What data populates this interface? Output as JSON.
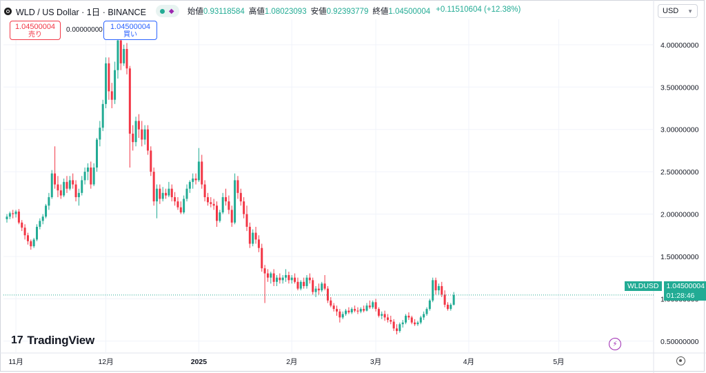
{
  "header": {
    "title": "WLD / US Dollar · 1日 · BINANCE",
    "open_label": "始値",
    "open": "0.93118584",
    "high_label": "高値",
    "high": "1.08023093",
    "low_label": "安値",
    "low": "0.92393779",
    "close_label": "終値",
    "close": "1.04500004",
    "change": "+0.11510604 (+12.38%)"
  },
  "currency": "USD",
  "trade": {
    "sell_price": "1.04500004",
    "sell_label": "売り",
    "spread": "0.00000000",
    "buy_price": "1.04500004",
    "buy_label": "買い"
  },
  "price_label": {
    "symbol": "WLDUSD",
    "price": "1.04500004",
    "countdown": "01:28:46"
  },
  "logo": "TradingView",
  "colors": {
    "up": "#22ab94",
    "down": "#f23645",
    "grid": "#f0f3fa",
    "accent": "#9c27b0"
  },
  "chart_data": {
    "type": "candlestick",
    "timeframe": "1日",
    "yticks": [
      "0.50000000",
      "1.00000000",
      "1.50000000",
      "2.00000000",
      "2.50000000",
      "3.00000000",
      "3.50000000",
      "4.00000000"
    ],
    "ylim": [
      0.36,
      4.3
    ],
    "xticks": [
      {
        "label": "11月",
        "index": 3
      },
      {
        "label": "12月",
        "index": 33
      },
      {
        "label": "2025",
        "index": 64
      },
      {
        "label": "2月",
        "index": 95
      },
      {
        "label": "3月",
        "index": 123
      },
      {
        "label": "4月",
        "index": 154
      },
      {
        "label": "5月",
        "index": 184
      }
    ],
    "last_price": 1.045,
    "ohlc": [
      [
        1.94,
        2.0,
        1.9,
        1.97
      ],
      [
        1.97,
        2.03,
        1.94,
        2.01
      ],
      [
        2.01,
        2.05,
        1.95,
        2.0
      ],
      [
        2.0,
        2.05,
        1.96,
        2.03
      ],
      [
        2.03,
        2.06,
        1.88,
        1.9
      ],
      [
        1.9,
        1.93,
        1.8,
        1.84
      ],
      [
        1.84,
        1.88,
        1.7,
        1.75
      ],
      [
        1.75,
        1.78,
        1.64,
        1.68
      ],
      [
        1.68,
        1.7,
        1.58,
        1.62
      ],
      [
        1.62,
        1.72,
        1.6,
        1.7
      ],
      [
        1.7,
        1.88,
        1.68,
        1.85
      ],
      [
        1.85,
        1.95,
        1.82,
        1.92
      ],
      [
        1.92,
        2.0,
        1.88,
        1.97
      ],
      [
        1.97,
        2.12,
        1.95,
        2.1
      ],
      [
        2.1,
        2.25,
        2.05,
        2.2
      ],
      [
        2.2,
        2.52,
        2.18,
        2.48
      ],
      [
        2.48,
        2.8,
        2.3,
        2.35
      ],
      [
        2.35,
        2.45,
        2.2,
        2.28
      ],
      [
        2.28,
        2.35,
        2.18,
        2.22
      ],
      [
        2.22,
        2.42,
        2.2,
        2.38
      ],
      [
        2.38,
        2.45,
        2.25,
        2.3
      ],
      [
        2.3,
        2.45,
        2.28,
        2.4
      ],
      [
        2.4,
        2.48,
        2.3,
        2.35
      ],
      [
        2.35,
        2.4,
        2.15,
        2.2
      ],
      [
        2.2,
        2.3,
        2.1,
        2.25
      ],
      [
        2.25,
        2.45,
        2.22,
        2.4
      ],
      [
        2.4,
        2.55,
        2.35,
        2.5
      ],
      [
        2.5,
        2.6,
        2.4,
        2.55
      ],
      [
        2.55,
        2.62,
        2.3,
        2.35
      ],
      [
        2.35,
        2.6,
        2.33,
        2.55
      ],
      [
        2.55,
        2.9,
        2.5,
        2.88
      ],
      [
        2.88,
        3.1,
        2.8,
        3.02
      ],
      [
        3.02,
        3.35,
        2.98,
        3.3
      ],
      [
        3.3,
        3.85,
        3.25,
        3.78
      ],
      [
        3.78,
        3.85,
        3.35,
        3.45
      ],
      [
        3.45,
        3.55,
        3.25,
        3.35
      ],
      [
        3.35,
        3.8,
        3.3,
        3.7
      ],
      [
        3.7,
        4.22,
        3.6,
        4.05
      ],
      [
        4.05,
        4.25,
        3.7,
        3.78
      ],
      [
        3.78,
        4.0,
        3.75,
        3.95
      ],
      [
        3.95,
        4.02,
        3.65,
        3.72
      ],
      [
        3.72,
        3.75,
        2.55,
        2.95
      ],
      [
        2.95,
        3.05,
        2.75,
        2.85
      ],
      [
        2.85,
        3.15,
        2.8,
        3.1
      ],
      [
        3.1,
        3.18,
        2.9,
        3.0
      ],
      [
        3.0,
        3.1,
        2.8,
        2.88
      ],
      [
        2.88,
        3.05,
        2.82,
        3.0
      ],
      [
        3.0,
        3.05,
        2.7,
        2.75
      ],
      [
        2.75,
        2.8,
        2.45,
        2.5
      ],
      [
        2.5,
        2.55,
        2.1,
        2.15
      ],
      [
        2.15,
        2.35,
        1.95,
        2.3
      ],
      [
        2.3,
        2.35,
        2.12,
        2.18
      ],
      [
        2.18,
        2.32,
        2.15,
        2.25
      ],
      [
        2.25,
        2.3,
        2.18,
        2.22
      ],
      [
        2.22,
        2.38,
        2.2,
        2.3
      ],
      [
        2.3,
        2.35,
        2.15,
        2.2
      ],
      [
        2.2,
        2.26,
        2.1,
        2.15
      ],
      [
        2.15,
        2.2,
        2.05,
        2.08
      ],
      [
        2.08,
        2.15,
        2.0,
        2.02
      ],
      [
        2.02,
        2.22,
        2.0,
        2.18
      ],
      [
        2.18,
        2.35,
        2.15,
        2.3
      ],
      [
        2.3,
        2.4,
        2.25,
        2.38
      ],
      [
        2.38,
        2.48,
        2.3,
        2.42
      ],
      [
        2.42,
        2.48,
        2.35,
        2.4
      ],
      [
        2.4,
        2.78,
        2.38,
        2.62
      ],
      [
        2.62,
        2.7,
        2.3,
        2.35
      ],
      [
        2.35,
        2.4,
        2.15,
        2.2
      ],
      [
        2.2,
        2.25,
        2.1,
        2.14
      ],
      [
        2.14,
        2.2,
        2.08,
        2.12
      ],
      [
        2.12,
        2.18,
        2.05,
        2.1
      ],
      [
        2.1,
        2.15,
        1.85,
        1.92
      ],
      [
        1.92,
        2.05,
        1.9,
        2.02
      ],
      [
        2.02,
        2.25,
        2.0,
        2.2
      ],
      [
        2.2,
        2.3,
        2.1,
        2.15
      ],
      [
        2.15,
        2.22,
        2.0,
        2.05
      ],
      [
        2.05,
        2.1,
        1.85,
        1.9
      ],
      [
        1.9,
        2.48,
        1.88,
        2.4
      ],
      [
        2.4,
        2.45,
        2.18,
        2.25
      ],
      [
        2.25,
        2.3,
        2.1,
        2.15
      ],
      [
        2.15,
        2.2,
        1.95,
        2.0
      ],
      [
        2.0,
        2.1,
        1.8,
        1.85
      ],
      [
        1.85,
        1.9,
        1.6,
        1.65
      ],
      [
        1.65,
        1.82,
        1.62,
        1.78
      ],
      [
        1.78,
        1.85,
        1.65,
        1.7
      ],
      [
        1.7,
        1.75,
        1.55,
        1.6
      ],
      [
        1.6,
        1.65,
        1.32,
        1.36
      ],
      [
        1.36,
        1.4,
        0.95,
        1.3
      ],
      [
        1.3,
        1.35,
        1.2,
        1.25
      ],
      [
        1.25,
        1.32,
        1.18,
        1.3
      ],
      [
        1.3,
        1.35,
        1.15,
        1.2
      ],
      [
        1.2,
        1.28,
        1.15,
        1.25
      ],
      [
        1.25,
        1.3,
        1.18,
        1.22
      ],
      [
        1.22,
        1.28,
        1.18,
        1.25
      ],
      [
        1.25,
        1.35,
        1.2,
        1.28
      ],
      [
        1.28,
        1.32,
        1.18,
        1.22
      ],
      [
        1.22,
        1.28,
        1.18,
        1.25
      ],
      [
        1.25,
        1.3,
        1.18,
        1.2
      ],
      [
        1.2,
        1.25,
        1.1,
        1.12
      ],
      [
        1.12,
        1.22,
        1.1,
        1.2
      ],
      [
        1.2,
        1.25,
        1.12,
        1.15
      ],
      [
        1.15,
        1.28,
        1.12,
        1.25
      ],
      [
        1.25,
        1.3,
        1.18,
        1.22
      ],
      [
        1.22,
        1.25,
        1.05,
        1.08
      ],
      [
        1.08,
        1.15,
        1.02,
        1.12
      ],
      [
        1.12,
        1.18,
        1.05,
        1.1
      ],
      [
        1.1,
        1.2,
        1.08,
        1.18
      ],
      [
        1.18,
        1.28,
        1.1,
        1.12
      ],
      [
        1.12,
        1.15,
        0.95,
        0.98
      ],
      [
        0.98,
        1.02,
        0.9,
        0.92
      ],
      [
        0.92,
        0.95,
        0.85,
        0.88
      ],
      [
        0.88,
        0.92,
        0.8,
        0.85
      ],
      [
        0.85,
        0.88,
        0.72,
        0.78
      ],
      [
        0.78,
        0.85,
        0.76,
        0.82
      ],
      [
        0.82,
        0.88,
        0.8,
        0.86
      ],
      [
        0.86,
        0.9,
        0.82,
        0.84
      ],
      [
        0.84,
        0.9,
        0.82,
        0.88
      ],
      [
        0.88,
        0.92,
        0.84,
        0.86
      ],
      [
        0.86,
        0.9,
        0.82,
        0.85
      ],
      [
        0.85,
        0.9,
        0.83,
        0.88
      ],
      [
        0.88,
        0.92,
        0.84,
        0.86
      ],
      [
        0.86,
        0.95,
        0.85,
        0.92
      ],
      [
        0.92,
        0.98,
        0.88,
        0.9
      ],
      [
        0.9,
        0.98,
        0.88,
        0.96
      ],
      [
        0.96,
        1.0,
        0.85,
        0.88
      ],
      [
        0.88,
        0.9,
        0.78,
        0.8
      ],
      [
        0.8,
        0.85,
        0.76,
        0.82
      ],
      [
        0.82,
        0.86,
        0.74,
        0.78
      ],
      [
        0.78,
        0.82,
        0.72,
        0.75
      ],
      [
        0.75,
        0.8,
        0.7,
        0.73
      ],
      [
        0.73,
        0.76,
        0.62,
        0.65
      ],
      [
        0.65,
        0.7,
        0.58,
        0.62
      ],
      [
        0.62,
        0.72,
        0.6,
        0.7
      ],
      [
        0.7,
        0.75,
        0.66,
        0.72
      ],
      [
        0.72,
        0.82,
        0.7,
        0.8
      ],
      [
        0.8,
        0.84,
        0.75,
        0.78
      ],
      [
        0.78,
        0.8,
        0.7,
        0.72
      ],
      [
        0.72,
        0.76,
        0.68,
        0.7
      ],
      [
        0.7,
        0.74,
        0.68,
        0.72
      ],
      [
        0.72,
        0.8,
        0.7,
        0.78
      ],
      [
        0.78,
        0.85,
        0.75,
        0.82
      ],
      [
        0.82,
        0.9,
        0.8,
        0.88
      ],
      [
        0.88,
        1.0,
        0.86,
        0.98
      ],
      [
        0.98,
        1.25,
        0.96,
        1.22
      ],
      [
        1.22,
        1.25,
        1.05,
        1.1
      ],
      [
        1.1,
        1.18,
        1.05,
        1.15
      ],
      [
        1.15,
        1.2,
        1.02,
        1.05
      ],
      [
        1.05,
        1.1,
        0.9,
        0.93
      ],
      [
        0.93,
        0.96,
        0.86,
        0.88
      ],
      [
        0.88,
        0.95,
        0.86,
        0.93
      ],
      [
        0.93,
        1.08,
        0.92,
        1.045
      ]
    ]
  }
}
